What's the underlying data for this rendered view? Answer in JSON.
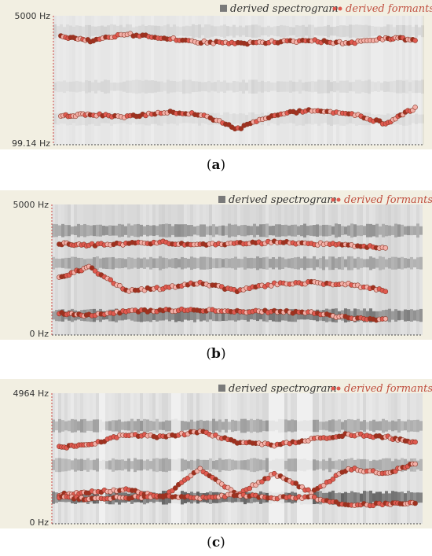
{
  "legend": {
    "spectrogram": "derived spectrogram",
    "formants": "derived formants"
  },
  "colors": {
    "frame_bg": "#f2efe2",
    "formant_fill": "#e05a50",
    "formant_dark": "#a0301e",
    "formant_light": "#f4b0a8",
    "track_line": "#ff3b3b",
    "legend_text": "#c05040"
  },
  "panels": [
    {
      "id": "a",
      "caption": "a",
      "y_top_label": "5000 Hz",
      "y_bottom_label": "99.14 Hz"
    },
    {
      "id": "b",
      "caption": "b",
      "y_top_label": "5000 Hz",
      "y_bottom_label": "0 Hz"
    },
    {
      "id": "c",
      "caption": "c",
      "y_top_label": "4964 Hz",
      "y_bottom_label": "0 Hz"
    }
  ],
  "chart_data": [
    {
      "type": "scatter",
      "title": "",
      "ylim": [
        99.14,
        5000
      ],
      "series": [
        {
          "name": "derived formants",
          "x": [
            0.02,
            0.1,
            0.2,
            0.3,
            0.4,
            0.5,
            0.6,
            0.7,
            0.8,
            0.9,
            0.98
          ],
          "y": [
            4200,
            4050,
            4300,
            4150,
            4000,
            3950,
            4000,
            4050,
            3950,
            4150,
            4100
          ]
        },
        {
          "name": "derived formants",
          "x": [
            0.02,
            0.1,
            0.2,
            0.3,
            0.4,
            0.5,
            0.6,
            0.7,
            0.8,
            0.9,
            0.98
          ],
          "y": [
            1200,
            1250,
            1150,
            1350,
            1250,
            700,
            1250,
            1400,
            1300,
            900,
            1500
          ]
        }
      ]
    },
    {
      "type": "scatter",
      "title": "",
      "ylim": [
        0,
        5000
      ],
      "series": [
        {
          "name": "derived formants",
          "x": [
            0.02,
            0.1,
            0.2,
            0.3,
            0.4,
            0.5,
            0.6,
            0.7,
            0.8,
            0.9
          ],
          "y": [
            3500,
            3450,
            3500,
            3550,
            3450,
            3500,
            3550,
            3500,
            3450,
            3350
          ]
        },
        {
          "name": "derived formants",
          "x": [
            0.02,
            0.1,
            0.2,
            0.3,
            0.4,
            0.5,
            0.6,
            0.7,
            0.8,
            0.9
          ],
          "y": [
            2200,
            2600,
            1700,
            1800,
            2000,
            1700,
            1950,
            2000,
            1950,
            1700
          ]
        },
        {
          "name": "derived formants",
          "x": [
            0.02,
            0.1,
            0.2,
            0.3,
            0.4,
            0.5,
            0.6,
            0.7,
            0.8,
            0.9
          ],
          "y": [
            850,
            750,
            900,
            950,
            950,
            900,
            900,
            850,
            650,
            600
          ]
        }
      ]
    },
    {
      "type": "scatter",
      "title": "",
      "ylim": [
        0,
        4964
      ],
      "series": [
        {
          "name": "derived formants",
          "x": [
            0.02,
            0.1,
            0.2,
            0.3,
            0.4,
            0.5,
            0.6,
            0.7,
            0.8,
            0.9,
            0.98
          ],
          "y": [
            2900,
            3000,
            3400,
            3300,
            3500,
            3100,
            3000,
            3200,
            3400,
            3300,
            3100
          ]
        },
        {
          "name": "derived formants",
          "x": [
            0.02,
            0.1,
            0.2,
            0.3,
            0.4,
            0.5,
            0.6,
            0.7,
            0.8,
            0.9,
            0.98
          ],
          "y": [
            1100,
            1200,
            1300,
            1000,
            2100,
            1100,
            1900,
            1200,
            2100,
            1900,
            2300
          ]
        },
        {
          "name": "derived formants",
          "x": [
            0.02,
            0.1,
            0.2,
            0.3,
            0.4,
            0.5,
            0.6,
            0.7,
            0.8,
            0.9,
            0.98
          ],
          "y": [
            1000,
            950,
            1000,
            1050,
            1000,
            1100,
            1000,
            1000,
            700,
            750,
            800
          ]
        }
      ]
    }
  ]
}
